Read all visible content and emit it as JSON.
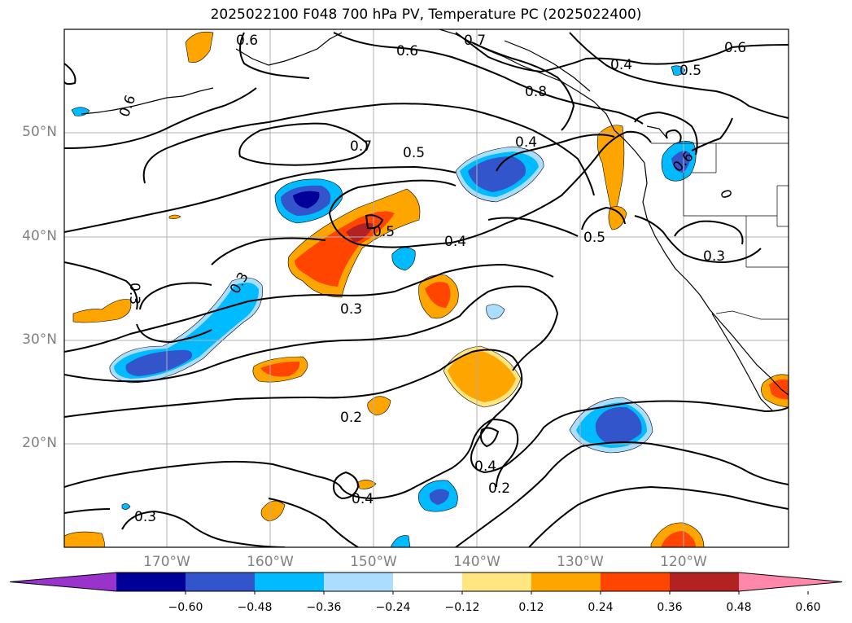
{
  "title": "2025022100 F048 700 hPa PV, Temperature PC (2025022400)",
  "lat_labels": [
    "50°N",
    "40°N",
    "30°N",
    "20°N"
  ],
  "lon_labels": [
    "170°W",
    "160°W",
    "150°W",
    "140°W",
    "130°W",
    "120°W"
  ],
  "colorbar": {
    "ticks": [
      "−0.60",
      "−0.48",
      "−0.36",
      "−0.24",
      "−0.12",
      "0.12",
      "0.24",
      "0.36",
      "0.48",
      "0.60"
    ],
    "colors": [
      "#9933cc",
      "#000099",
      "#3355cc",
      "#00bbff",
      "#aaddff",
      "#ffffff",
      "#ffe680",
      "#ffa500",
      "#ff4500",
      "#b22222",
      "#ff88aa"
    ]
  },
  "contour_labels": {
    "c1": "0.6",
    "c2": "0.6",
    "c3": "0.7",
    "c4": "0.6",
    "c5": "0.4",
    "c6": "0.5",
    "c7": "0.6",
    "c8": "0.8",
    "c9": "0.7",
    "c10": "0.5",
    "c11": "0.4",
    "c12": "0.6",
    "c13": "0.5",
    "c14": "0.4",
    "c15": "0.5",
    "c16": "0.3",
    "c17": "0.3",
    "c18": "0.3",
    "c19": "0.3",
    "c20": "0.2",
    "c21": "0.4",
    "c22": "0.2",
    "c23": "0.4",
    "c24": "0.3",
    "c25": "0"
  }
}
